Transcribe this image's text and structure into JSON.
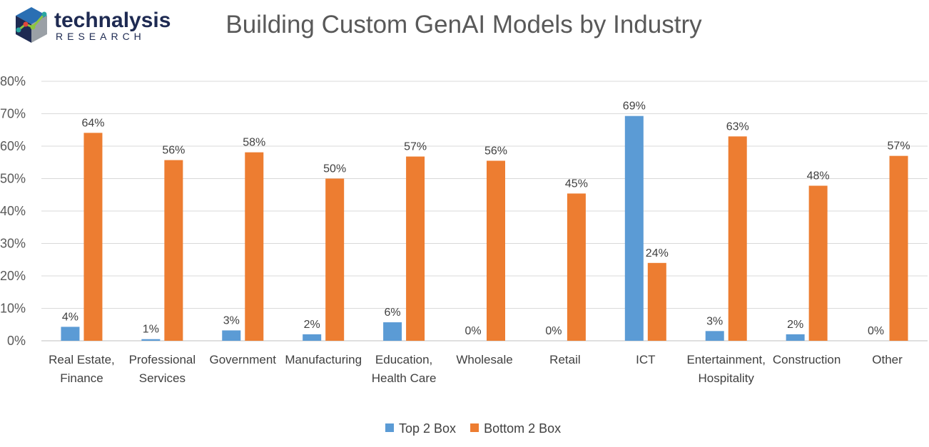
{
  "brand": {
    "name": "technalysis",
    "sub": "RESEARCH",
    "colors": {
      "navy": "#1e2a52",
      "blue": "#2a6fb3",
      "teal": "#2aa6a0",
      "green": "#8cc63f",
      "gray": "#9aa0a6"
    }
  },
  "chart_data": {
    "type": "bar",
    "title": "Building Custom GenAI Models by Industry",
    "xlabel": "",
    "ylabel": "",
    "ylim": [
      0,
      80
    ],
    "yticks": [
      0,
      10,
      20,
      30,
      40,
      50,
      60,
      70,
      80
    ],
    "ytick_labels": [
      "0%",
      "10%",
      "20%",
      "30%",
      "40%",
      "50%",
      "60%",
      "70%",
      "80%"
    ],
    "grid": true,
    "legend_position": "bottom",
    "categories": [
      [
        "Real Estate,",
        "Finance"
      ],
      [
        "Professional",
        "Services"
      ],
      [
        "Government"
      ],
      [
        "Manufacturing"
      ],
      [
        "Education,",
        "Health Care"
      ],
      [
        "Wholesale"
      ],
      [
        "Retail"
      ],
      [
        "ICT"
      ],
      [
        "Entertainment,",
        "Hospitality"
      ],
      [
        "Construction"
      ],
      [
        "Other"
      ]
    ],
    "series": [
      {
        "name": "Top 2 Box",
        "color": "#5b9bd5",
        "values": [
          4.3,
          0.5,
          3.2,
          2.0,
          5.7,
          0,
          0,
          69.3,
          3.0,
          2.0,
          0
        ],
        "labels": [
          "4%",
          "1%",
          "3%",
          "2%",
          "6%",
          "0%",
          "0%",
          "69%",
          "3%",
          "2%",
          "0%"
        ]
      },
      {
        "name": "Bottom 2 Box",
        "color": "#ed7d31",
        "values": [
          64.1,
          55.7,
          58.1,
          50.0,
          56.8,
          55.5,
          45.4,
          24.0,
          63.0,
          47.8,
          57.0
        ],
        "labels": [
          "64%",
          "56%",
          "58%",
          "50%",
          "57%",
          "56%",
          "45%",
          "24%",
          "63%",
          "48%",
          "57%"
        ]
      }
    ]
  }
}
